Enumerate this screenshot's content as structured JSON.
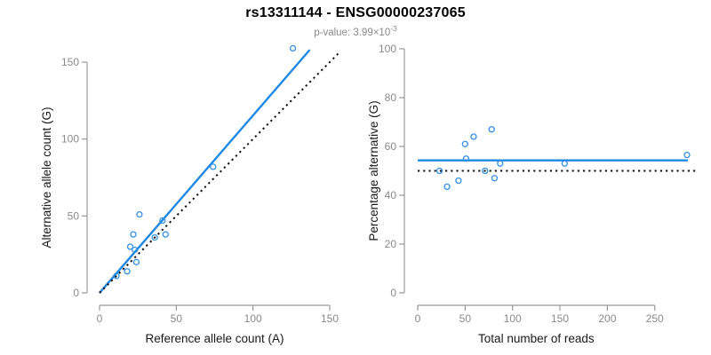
{
  "header": {
    "title": "rs13311144 - ENSG00000237065",
    "subtitle_prefix": "p-value: 3.99×10",
    "subtitle_exponent": "-3"
  },
  "colors": {
    "line_blue": "#1E88E5",
    "point_blue": "#3390E8",
    "dotted_black": "#111111",
    "axis_gray": "#999999",
    "tick_label_gray": "#8a8a8a",
    "axis_title_color": "#1a1a1a"
  },
  "chart_data": [
    {
      "type": "scatter",
      "panel": "left",
      "xlabel": "Reference allele count (A)",
      "ylabel": "Alternative allele count (G)",
      "xlim": [
        0,
        150
      ],
      "ylim": [
        0,
        150
      ],
      "xticks": [
        0,
        50,
        100,
        150
      ],
      "yticks": [
        0,
        50,
        100,
        150
      ],
      "grid": false,
      "points": [
        {
          "x": 11,
          "y": 11
        },
        {
          "x": 18,
          "y": 14
        },
        {
          "x": 24,
          "y": 20
        },
        {
          "x": 23,
          "y": 28
        },
        {
          "x": 20,
          "y": 30
        },
        {
          "x": 22,
          "y": 38
        },
        {
          "x": 36,
          "y": 36
        },
        {
          "x": 43,
          "y": 38
        },
        {
          "x": 26,
          "y": 51
        },
        {
          "x": 41,
          "y": 47
        },
        {
          "x": 74,
          "y": 82
        },
        {
          "x": 126,
          "y": 159
        }
      ],
      "lines": [
        {
          "name": "fit-line",
          "style": "solid",
          "x1": 0,
          "y1": 0,
          "x2": 137,
          "y2": 158
        },
        {
          "name": "identity-line",
          "style": "dotted",
          "x1": 0,
          "y1": 0,
          "x2": 157,
          "y2": 157
        }
      ]
    },
    {
      "type": "scatter",
      "panel": "right",
      "xlabel": "Total number of reads",
      "ylabel": "Percentage alternative (G)",
      "xlim": [
        0,
        250
      ],
      "ylim": [
        0,
        100
      ],
      "xticks": [
        0,
        50,
        100,
        150,
        200,
        250
      ],
      "yticks": [
        0,
        20,
        40,
        60,
        80,
        100
      ],
      "grid": false,
      "points": [
        {
          "x": 23,
          "y": 50
        },
        {
          "x": 31,
          "y": 43.5
        },
        {
          "x": 43,
          "y": 46
        },
        {
          "x": 50,
          "y": 61
        },
        {
          "x": 51,
          "y": 55
        },
        {
          "x": 59,
          "y": 64
        },
        {
          "x": 71,
          "y": 50
        },
        {
          "x": 78,
          "y": 67
        },
        {
          "x": 81,
          "y": 47
        },
        {
          "x": 87,
          "y": 53
        },
        {
          "x": 155,
          "y": 53
        },
        {
          "x": 284,
          "y": 56.5
        }
      ],
      "lines": [
        {
          "name": "mean-percentage-line",
          "style": "solid",
          "x1": 0,
          "y1": 54.3,
          "x2": 285,
          "y2": 54.3
        },
        {
          "name": "expected-50pct-line",
          "style": "dotted",
          "x1": 0,
          "y1": 50,
          "x2": 293,
          "y2": 50
        }
      ]
    }
  ]
}
